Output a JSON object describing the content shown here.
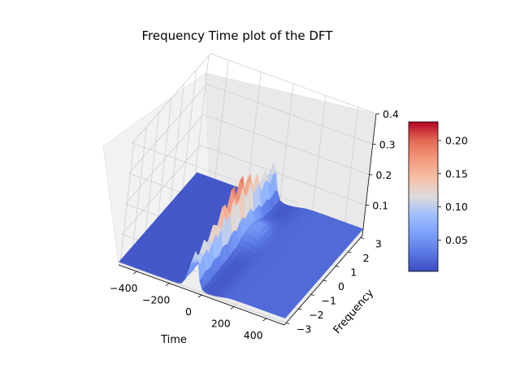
{
  "chart_data": {
    "type": "surface",
    "title": "Frequency Time plot of the DFT",
    "xlabel": "Time",
    "ylabel": "Frequency",
    "zlabel": "",
    "xlim": [
      -512,
      512
    ],
    "ylim": [
      -3.14,
      3.14
    ],
    "zlim": [
      0,
      0.4
    ],
    "x_ticks": [
      -400,
      -200,
      0,
      200,
      400
    ],
    "y_ticks": [
      -3,
      -2,
      -1,
      0,
      1,
      2,
      3
    ],
    "z_ticks": [
      0.1,
      0.2,
      0.3,
      0.4
    ],
    "x_tick_labels": [
      "−400",
      "−200",
      "0",
      "200",
      "400"
    ],
    "y_tick_labels": [
      "−3",
      "−2",
      "−1",
      "0",
      "1",
      "2",
      "3"
    ],
    "z_tick_labels": [
      "0.1",
      "0.2",
      "0.3",
      "0.4"
    ],
    "grid": true,
    "colormap": "coolwarm",
    "colorbar": {
      "range": [
        0.003,
        0.228
      ],
      "ticks": [
        0.05,
        0.1,
        0.15,
        0.2
      ],
      "tick_labels": [
        "0.05",
        "0.10",
        "0.15",
        "0.20"
      ]
    },
    "surface": {
      "description_shape": "time-frequency magnitude; narrow peak centred near time -60, wide in frequency, with side ridges",
      "peak_value": 0.228,
      "peak_time": -60,
      "baseline": 0.01
    }
  }
}
